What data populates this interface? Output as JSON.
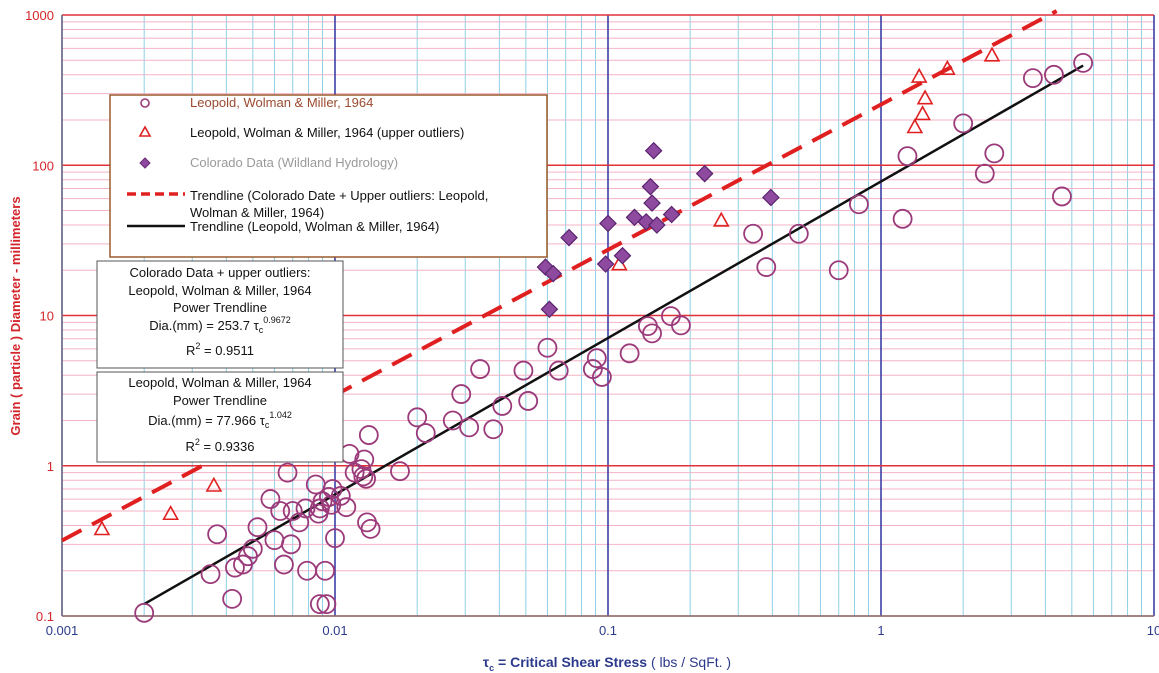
{
  "chart_data": {
    "type": "scatter",
    "x_scale": "log",
    "y_scale": "log",
    "xlim": [
      0.001,
      10
    ],
    "ylim": [
      0.1,
      1000
    ],
    "x_tick_labels": [
      "0.001",
      "0.01",
      "0.1",
      "1",
      "10"
    ],
    "y_tick_labels": [
      "0.1",
      "1",
      "10",
      "100",
      "1000"
    ],
    "xlabel_symbol": "τ",
    "xlabel_sub": "c",
    "xlabel_main": " = Critical Shear Stress",
    "xlabel_units": " ( lbs / SqFt. )",
    "ylabel": "Grain ( particle ) Diameter - millimeters",
    "grid": true,
    "legend_position": "top-left",
    "legend": [
      {
        "label": "Leopold, Wolman & Miller, 1964",
        "color": "#9b4a2e"
      },
      {
        "label": "Leopold, Wolman & Miller, 1964 (upper outliers)",
        "color": "#111111"
      },
      {
        "label": "Colorado Data (Wildland Hydrology)",
        "color": "#9a9a9a"
      },
      {
        "label": "Trendline (Colorado Date + Upper outliers: Leopold,",
        "color": "#111111"
      },
      {
        "label": "Wolman & Miller, 1964)",
        "color": "#111111"
      },
      {
        "label": "Trendline (Leopold, Wolman & Miller, 1964)",
        "color": "#111111"
      }
    ],
    "series": [
      {
        "name": "Leopold, Wolman & Miller, 1964",
        "marker": "circle",
        "color": "#9b3a7a",
        "points": [
          [
            0.002,
            0.105
          ],
          [
            0.0035,
            0.19
          ],
          [
            0.0037,
            0.35
          ],
          [
            0.0042,
            0.13
          ],
          [
            0.0043,
            0.21
          ],
          [
            0.0046,
            0.22
          ],
          [
            0.0048,
            0.25
          ],
          [
            0.005,
            0.28
          ],
          [
            0.0052,
            0.39
          ],
          [
            0.0058,
            0.6
          ],
          [
            0.006,
            0.32
          ],
          [
            0.0063,
            0.5
          ],
          [
            0.0065,
            0.22
          ],
          [
            0.0067,
            0.9
          ],
          [
            0.0069,
            0.3
          ],
          [
            0.007,
            0.5
          ],
          [
            0.0074,
            0.42
          ],
          [
            0.0078,
            0.52
          ],
          [
            0.0079,
            0.2
          ],
          [
            0.0085,
            0.75
          ],
          [
            0.0087,
            0.48
          ],
          [
            0.0088,
            0.52
          ],
          [
            0.0088,
            0.12
          ],
          [
            0.009,
            0.58
          ],
          [
            0.0092,
            0.2
          ],
          [
            0.0093,
            0.12
          ],
          [
            0.0095,
            0.62
          ],
          [
            0.0097,
            0.55
          ],
          [
            0.0098,
            0.7
          ],
          [
            0.01,
            0.33
          ],
          [
            0.0105,
            0.63
          ],
          [
            0.011,
            0.53
          ],
          [
            0.0113,
            1.2
          ],
          [
            0.0118,
            0.9
          ],
          [
            0.0125,
            0.95
          ],
          [
            0.0127,
            0.85
          ],
          [
            0.0128,
            1.1
          ],
          [
            0.013,
            0.82
          ],
          [
            0.0131,
            0.42
          ],
          [
            0.0133,
            1.6
          ],
          [
            0.0135,
            0.38
          ],
          [
            0.0173,
            0.92
          ],
          [
            0.02,
            2.1
          ],
          [
            0.0215,
            1.65
          ],
          [
            0.027,
            2.0
          ],
          [
            0.029,
            3.0
          ],
          [
            0.031,
            1.8
          ],
          [
            0.034,
            4.4
          ],
          [
            0.038,
            1.75
          ],
          [
            0.041,
            2.5
          ],
          [
            0.049,
            4.3
          ],
          [
            0.051,
            2.7
          ],
          [
            0.06,
            6.1
          ],
          [
            0.066,
            4.3
          ],
          [
            0.088,
            4.4
          ],
          [
            0.091,
            5.2
          ],
          [
            0.095,
            3.9
          ],
          [
            0.12,
            5.6
          ],
          [
            0.14,
            8.5
          ],
          [
            0.145,
            7.6
          ],
          [
            0.17,
            9.9
          ],
          [
            0.185,
            8.6
          ],
          [
            0.34,
            35
          ],
          [
            0.38,
            21
          ],
          [
            0.5,
            35
          ],
          [
            0.7,
            20
          ],
          [
            0.83,
            55
          ],
          [
            1.2,
            44
          ],
          [
            1.25,
            115
          ],
          [
            2.0,
            190
          ],
          [
            2.4,
            88
          ],
          [
            2.6,
            120
          ],
          [
            3.6,
            380
          ],
          [
            4.3,
            400
          ],
          [
            4.6,
            62
          ],
          [
            5.5,
            480
          ]
        ]
      },
      {
        "name": "Leopold, Wolman & Miller, 1964 (upper outliers)",
        "marker": "triangle",
        "color": "#e02020",
        "points": [
          [
            0.0014,
            0.38
          ],
          [
            0.0025,
            0.48
          ],
          [
            0.0036,
            0.74
          ],
          [
            0.11,
            22
          ],
          [
            0.26,
            43
          ],
          [
            1.33,
            180
          ],
          [
            1.38,
            390
          ],
          [
            1.42,
            220
          ],
          [
            1.45,
            280
          ],
          [
            1.75,
            440
          ],
          [
            2.55,
            540
          ]
        ]
      },
      {
        "name": "Colorado Data (Wildland Hydrology)",
        "marker": "diamond",
        "color": "#8e4a9e",
        "points": [
          [
            0.059,
            21
          ],
          [
            0.061,
            11
          ],
          [
            0.063,
            19
          ],
          [
            0.072,
            33
          ],
          [
            0.098,
            22
          ],
          [
            0.1,
            41
          ],
          [
            0.113,
            25
          ],
          [
            0.125,
            45
          ],
          [
            0.138,
            42
          ],
          [
            0.143,
            72
          ],
          [
            0.145,
            56
          ],
          [
            0.147,
            125
          ],
          [
            0.151,
            40
          ],
          [
            0.171,
            47
          ],
          [
            0.226,
            88
          ],
          [
            0.395,
            61
          ]
        ]
      }
    ],
    "trendlines": [
      {
        "name": "Trendline (Colorado Date + Upper outliers: Leopold, Wolman & Miller, 1964)",
        "coef": 253.7,
        "exponent": 0.9672,
        "x_range": [
          0.001,
          4.4
        ],
        "style": "dashed",
        "color": "#e02020"
      },
      {
        "name": "Trendline (Leopold, Wolman & Miller, 1964)",
        "coef": 77.966,
        "exponent": 1.042,
        "x_range": [
          0.002,
          5.5
        ],
        "style": "solid",
        "color": "#111111"
      }
    ],
    "annotations": [
      {
        "lines": [
          "Colorado Data + upper outliers:",
          "Leopold, Wolman & Miller, 1964",
          "Power Trendline"
        ],
        "eq_prefix": "Dia.(mm) = 253.7 τ",
        "eq_sub": "c",
        "eq_exp": "0.9672",
        "r2_prefix": "R",
        "r2_sup": "2",
        "r2_value": " = 0.9511"
      },
      {
        "lines": [
          "Leopold, Wolman & Miller, 1964",
          "Power Trendline"
        ],
        "eq_prefix": "Dia.(mm) = 77.966 τ",
        "eq_sub": "c",
        "eq_exp": "1.042",
        "r2_prefix": "R",
        "r2_sup": "2",
        "r2_value": " = 0.9336"
      }
    ]
  }
}
